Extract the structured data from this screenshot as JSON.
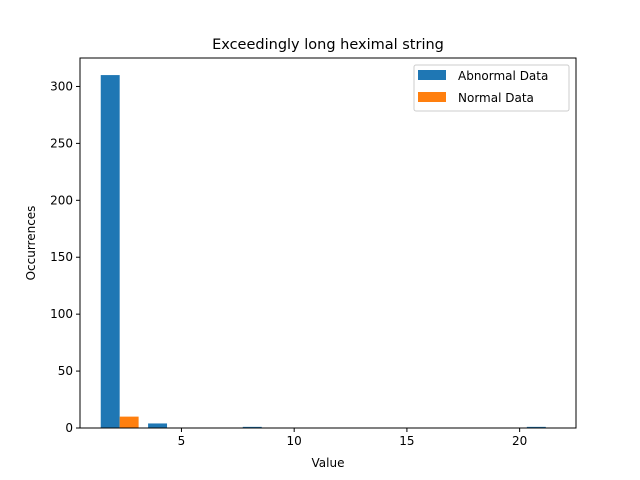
{
  "chart_data": {
    "type": "bar",
    "title": "Exceedingly long heximal string",
    "xlabel": "Value",
    "ylabel": "Occurrences",
    "xlim": [
      0.5,
      22.5
    ],
    "ylim": [
      0,
      325
    ],
    "xticks": [
      5,
      10,
      15,
      20
    ],
    "yticks": [
      0,
      50,
      100,
      150,
      200,
      250,
      300
    ],
    "bar_width": 0.84,
    "grid": false,
    "legend_position": "upper-right",
    "series": [
      {
        "name": "Abnormal Data",
        "color": "#1f77b4",
        "bins": [
          {
            "x": 1.84,
            "value": 310
          },
          {
            "x": 3.94,
            "value": 4
          },
          {
            "x": 8.14,
            "value": 1
          },
          {
            "x": 20.74,
            "value": 1
          }
        ]
      },
      {
        "name": "Normal Data",
        "color": "#ff7f0e",
        "bins": [
          {
            "x": 2.68,
            "value": 10
          }
        ]
      }
    ]
  }
}
